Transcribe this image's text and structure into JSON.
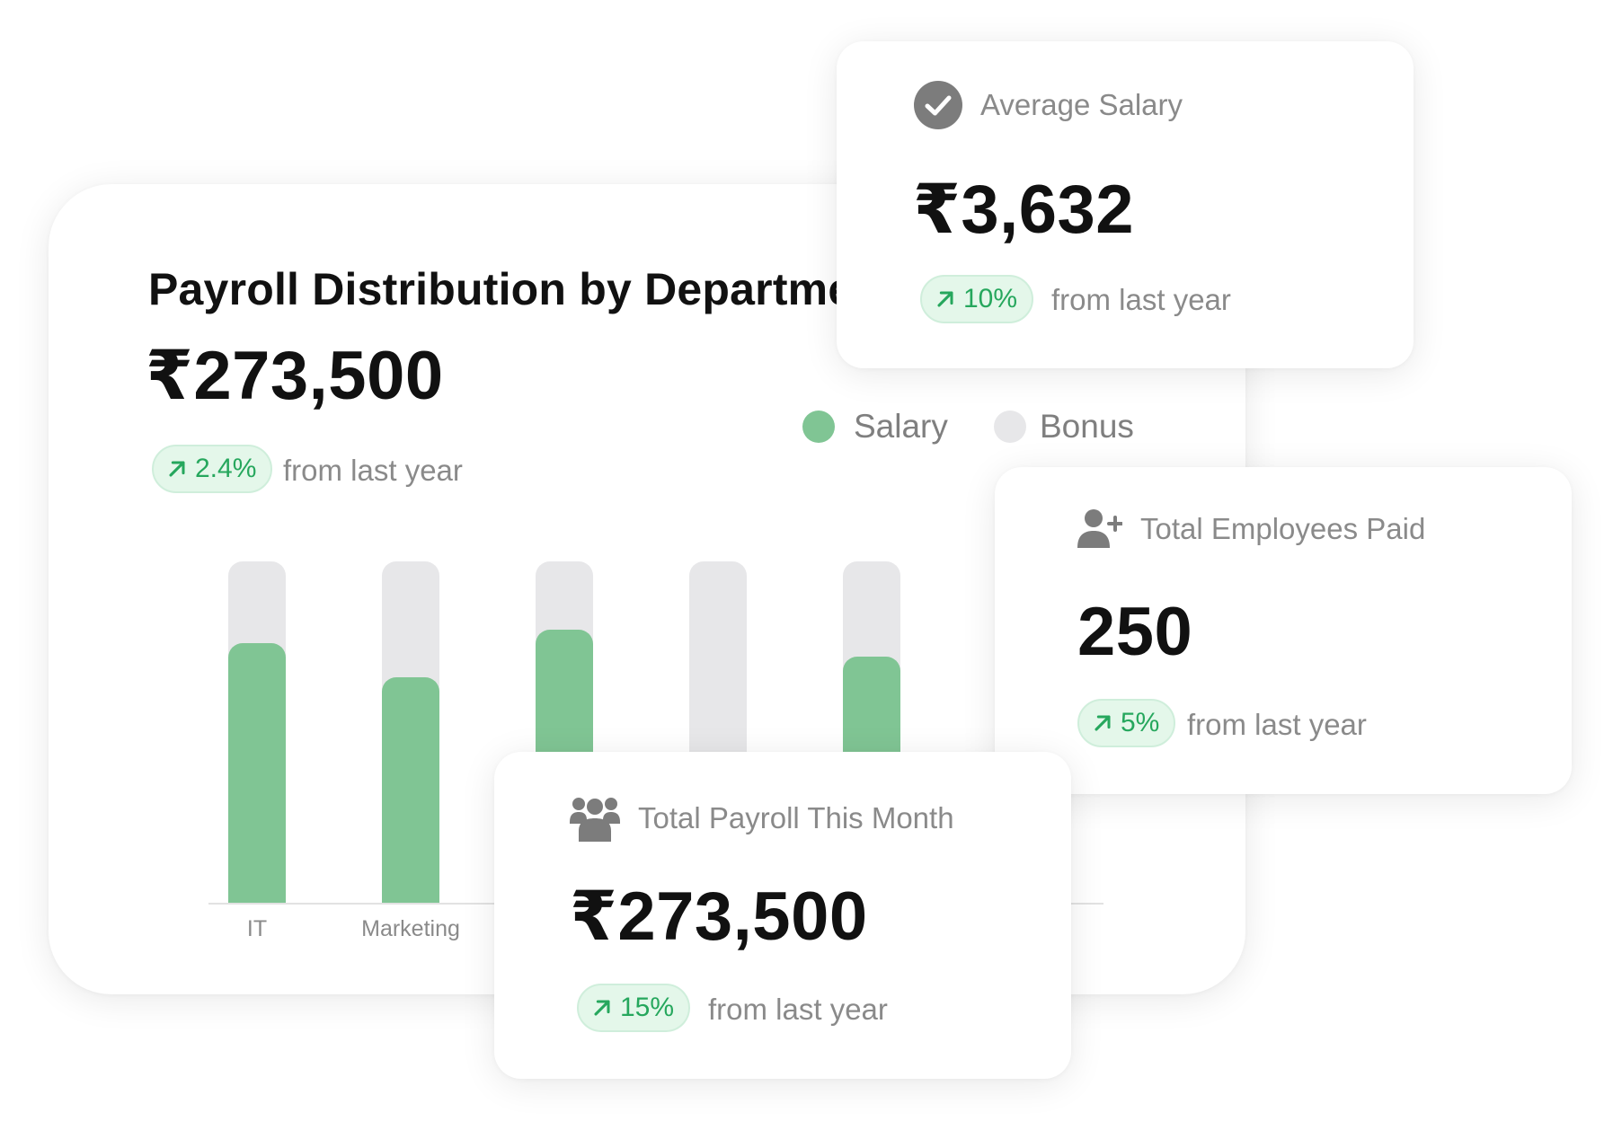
{
  "main_card": {
    "title": "Payroll Distribution by Department",
    "total": "₹273,500",
    "change": "2.4%",
    "change_caption": "from last year",
    "legend": {
      "salary": "Salary",
      "bonus": "Bonus"
    }
  },
  "chart_data": {
    "type": "bar",
    "categories": [
      "IT",
      "Marketing",
      "",
      "",
      ""
    ],
    "series": [
      {
        "name": "Salary",
        "values": [
          76,
          66,
          80,
          0,
          72
        ]
      },
      {
        "name": "Bonus",
        "values": [
          100,
          100,
          100,
          100,
          100
        ]
      }
    ],
    "ylim": [
      0,
      100
    ],
    "colors": {
      "Salary": "#80c594",
      "Bonus": "#e7e7e9"
    }
  },
  "average_salary": {
    "icon": "check-circle-icon",
    "label": "Average Salary",
    "value": "₹3,632",
    "change": "10%",
    "change_caption": "from last year"
  },
  "employees_paid": {
    "icon": "user-plus-icon",
    "label": "Total Employees Paid",
    "value": "250",
    "change": "5%",
    "change_caption": "from last year"
  },
  "total_payroll": {
    "icon": "users-group-icon",
    "label": "Total Payroll This Month",
    "value": "₹273,500",
    "change": "15%",
    "change_caption": "from last year"
  },
  "colors": {
    "accent_green": "#26a75d",
    "pill_bg": "#e4f7ea",
    "muted_text": "#8a8a8a"
  }
}
